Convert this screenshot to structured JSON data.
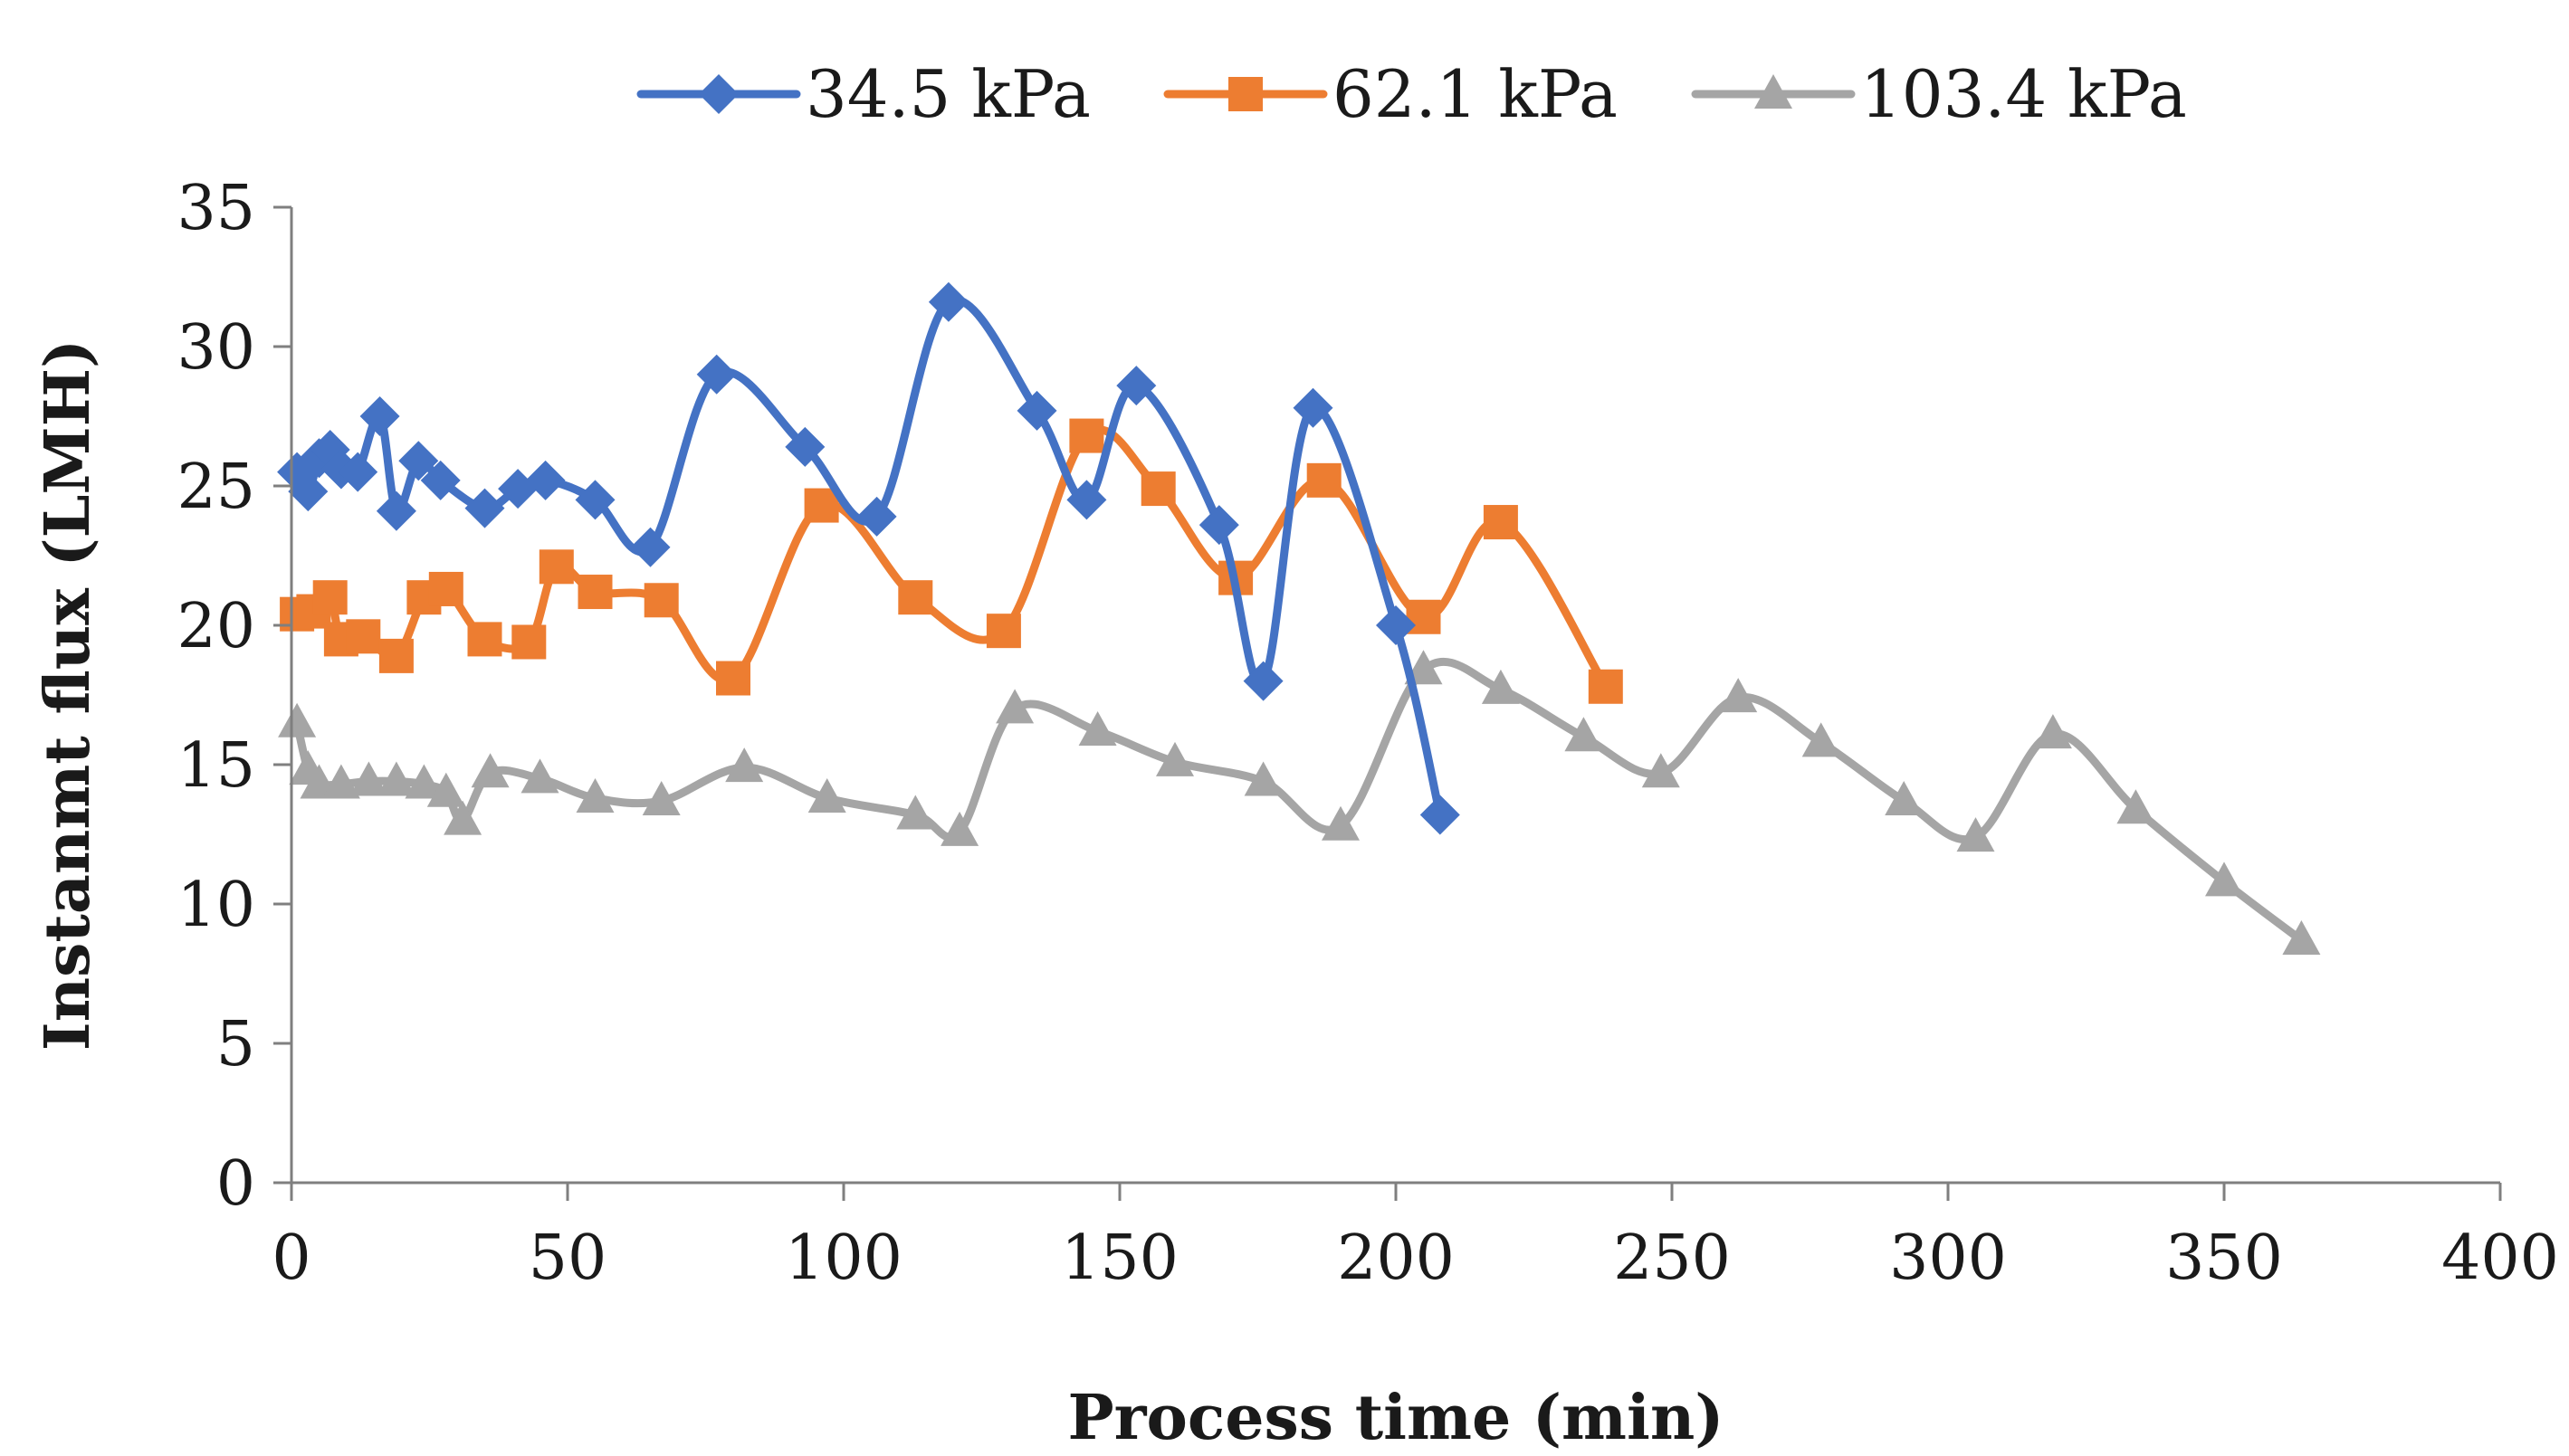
{
  "chart_data": {
    "type": "line",
    "title": "",
    "xlabel": "Process time (min)",
    "ylabel": "Instanmt flux (LMH)",
    "xlim": [
      0,
      400
    ],
    "ylim": [
      0,
      35
    ],
    "xticks": [
      0,
      50,
      100,
      150,
      200,
      250,
      300,
      350,
      400
    ],
    "yticks": [
      0,
      5,
      10,
      15,
      20,
      25,
      30,
      35
    ],
    "grid": false,
    "legend_position": "top-center",
    "smooth": true,
    "series": [
      {
        "name": "34.5 kPa",
        "color": "#4472C4",
        "marker": "diamond",
        "points": [
          [
            1,
            25.5
          ],
          [
            3,
            24.8
          ],
          [
            5,
            26.0
          ],
          [
            7,
            26.3
          ],
          [
            9,
            25.6
          ],
          [
            12,
            25.5
          ],
          [
            16,
            27.5
          ],
          [
            19,
            24.1
          ],
          [
            23,
            25.9
          ],
          [
            27,
            25.2
          ],
          [
            35,
            24.2
          ],
          [
            41,
            24.9
          ],
          [
            46,
            25.2
          ],
          [
            55,
            24.5
          ],
          [
            65,
            22.8
          ],
          [
            77,
            29.0
          ],
          [
            93,
            26.4
          ],
          [
            106,
            23.9
          ],
          [
            119,
            31.6
          ],
          [
            135,
            27.7
          ],
          [
            144,
            24.5
          ],
          [
            153,
            28.6
          ],
          [
            168,
            23.6
          ],
          [
            176,
            18.0
          ],
          [
            185,
            27.8
          ],
          [
            200,
            20.0
          ],
          [
            208,
            13.2
          ]
        ]
      },
      {
        "name": "62.1 kPa",
        "color": "#ED7D31",
        "marker": "square",
        "points": [
          [
            1,
            20.4
          ],
          [
            4,
            20.5
          ],
          [
            7,
            21.0
          ],
          [
            9,
            19.5
          ],
          [
            13,
            19.6
          ],
          [
            19,
            18.9
          ],
          [
            24,
            21.0
          ],
          [
            28,
            21.3
          ],
          [
            35,
            19.5
          ],
          [
            43,
            19.4
          ],
          [
            48,
            22.1
          ],
          [
            55,
            21.2
          ],
          [
            67,
            20.9
          ],
          [
            80,
            18.1
          ],
          [
            96,
            24.3
          ],
          [
            113,
            21.0
          ],
          [
            129,
            19.8
          ],
          [
            144,
            26.8
          ],
          [
            157,
            24.9
          ],
          [
            171,
            21.7
          ],
          [
            187,
            25.2
          ],
          [
            205,
            20.3
          ],
          [
            219,
            23.7
          ],
          [
            238,
            17.8
          ]
        ]
      },
      {
        "name": "103.4 kPa",
        "color": "#A5A5A5",
        "marker": "triangle",
        "points": [
          [
            1,
            16.5
          ],
          [
            3,
            14.8
          ],
          [
            5,
            14.3
          ],
          [
            9,
            14.3
          ],
          [
            14,
            14.4
          ],
          [
            19,
            14.4
          ],
          [
            24,
            14.3
          ],
          [
            28,
            14.0
          ],
          [
            31,
            13.0
          ],
          [
            36,
            14.7
          ],
          [
            45,
            14.5
          ],
          [
            55,
            13.8
          ],
          [
            67,
            13.7
          ],
          [
            82,
            14.9
          ],
          [
            97,
            13.8
          ],
          [
            113,
            13.2
          ],
          [
            121,
            12.6
          ],
          [
            131,
            17.0
          ],
          [
            146,
            16.2
          ],
          [
            160,
            15.1
          ],
          [
            176,
            14.4
          ],
          [
            190,
            12.8
          ],
          [
            205,
            18.4
          ],
          [
            219,
            17.7
          ],
          [
            234,
            16.0
          ],
          [
            248,
            14.7
          ],
          [
            262,
            17.4
          ],
          [
            277,
            15.8
          ],
          [
            292,
            13.7
          ],
          [
            305,
            12.4
          ],
          [
            319,
            16.1
          ],
          [
            334,
            13.4
          ],
          [
            350,
            10.8
          ],
          [
            364,
            8.7
          ]
        ]
      }
    ]
  }
}
